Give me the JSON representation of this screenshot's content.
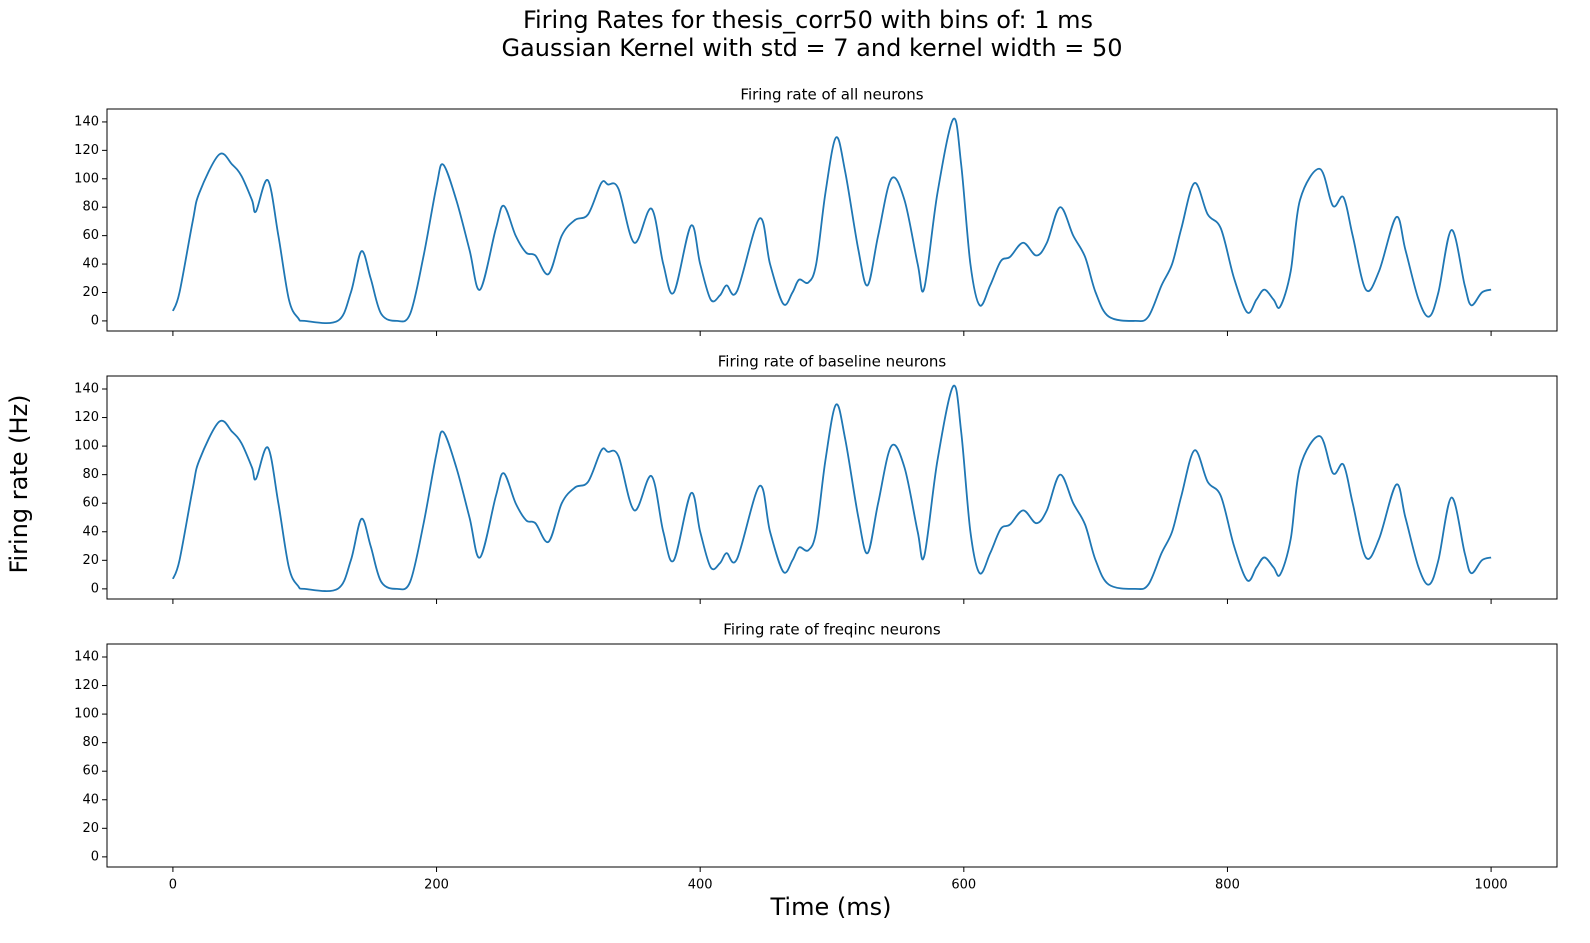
{
  "title_lines": [
    "Firing Rates for thesis_corr50 with bins of: 1 ms",
    "Gaussian Kernel with std = 7 and kernel width = 50"
  ],
  "xlabel": "Time (ms)",
  "ylabel": "Firing rate (Hz)",
  "chart_data": [
    {
      "type": "line",
      "title": "Firing rate of all neurons",
      "color": "#1f77b4",
      "x": [
        0,
        5,
        15,
        20,
        35,
        45,
        52,
        60,
        63,
        72,
        80,
        88,
        95,
        100,
        125,
        135,
        143,
        150,
        158,
        170,
        180,
        190,
        200,
        205,
        215,
        225,
        233,
        245,
        251,
        260,
        268,
        275,
        285,
        295,
        305,
        315,
        325,
        330,
        338,
        350,
        363,
        372,
        380,
        393,
        400,
        408,
        415,
        420,
        428,
        445,
        453,
        463,
        470,
        475,
        482,
        488,
        495,
        503,
        510,
        520,
        527,
        535,
        545,
        555,
        565,
        570,
        580,
        592,
        598,
        605,
        612,
        620,
        628,
        635,
        645,
        655,
        663,
        673,
        683,
        692,
        700,
        710,
        730,
        740,
        750,
        758,
        765,
        775,
        785,
        795,
        805,
        815,
        822,
        828,
        835,
        840,
        848,
        855,
        870,
        880,
        888,
        895,
        905,
        915,
        928,
        935,
        945,
        953,
        960,
        970,
        980,
        985,
        993,
        1000
      ],
      "values": [
        7,
        20,
        70,
        90,
        117,
        110,
        102,
        85,
        77,
        99,
        60,
        15,
        2,
        0,
        0,
        20,
        49,
        30,
        5,
        0,
        5,
        45,
        95,
        110,
        85,
        50,
        22,
        65,
        81,
        60,
        48,
        46,
        33,
        60,
        71,
        75,
        97,
        96,
        93,
        55,
        79,
        40,
        20,
        67,
        40,
        15,
        18,
        25,
        21,
        72,
        40,
        12,
        20,
        29,
        27,
        40,
        90,
        129,
        105,
        50,
        25,
        60,
        100,
        85,
        40,
        23,
        90,
        142,
        110,
        40,
        11,
        25,
        42,
        45,
        55,
        46,
        55,
        80,
        60,
        45,
        20,
        3,
        0,
        3,
        25,
        40,
        65,
        97,
        75,
        65,
        30,
        6,
        15,
        22,
        15,
        10,
        35,
        85,
        107,
        81,
        87,
        60,
        22,
        35,
        73,
        50,
        15,
        3,
        20,
        64,
        25,
        11,
        20,
        22
      ],
      "xlim": [
        -50,
        1050
      ],
      "xticks": [
        0,
        200,
        400,
        600,
        800,
        1000
      ],
      "show_xtick_labels": false,
      "ylim": [
        -7.1,
        149.1
      ],
      "yticks": [
        0,
        20,
        40,
        60,
        80,
        100,
        120,
        140
      ]
    },
    {
      "type": "line",
      "title": "Firing rate of baseline neurons",
      "color": "#1f77b4",
      "x": [
        0,
        5,
        15,
        20,
        35,
        45,
        52,
        60,
        63,
        72,
        80,
        88,
        95,
        100,
        125,
        135,
        143,
        150,
        158,
        170,
        180,
        190,
        200,
        205,
        215,
        225,
        233,
        245,
        251,
        260,
        268,
        275,
        285,
        295,
        305,
        315,
        325,
        330,
        338,
        350,
        363,
        372,
        380,
        393,
        400,
        408,
        415,
        420,
        428,
        445,
        453,
        463,
        470,
        475,
        482,
        488,
        495,
        503,
        510,
        520,
        527,
        535,
        545,
        555,
        565,
        570,
        580,
        592,
        598,
        605,
        612,
        620,
        628,
        635,
        645,
        655,
        663,
        673,
        683,
        692,
        700,
        710,
        730,
        740,
        750,
        758,
        765,
        775,
        785,
        795,
        805,
        815,
        822,
        828,
        835,
        840,
        848,
        855,
        870,
        880,
        888,
        895,
        905,
        915,
        928,
        935,
        945,
        953,
        960,
        970,
        980,
        985,
        993,
        1000
      ],
      "values": [
        7,
        20,
        70,
        90,
        117,
        110,
        102,
        85,
        77,
        99,
        60,
        15,
        2,
        0,
        0,
        20,
        49,
        30,
        5,
        0,
        5,
        45,
        95,
        110,
        85,
        50,
        22,
        65,
        81,
        60,
        48,
        46,
        33,
        60,
        71,
        75,
        97,
        96,
        93,
        55,
        79,
        40,
        20,
        67,
        40,
        15,
        18,
        25,
        21,
        72,
        40,
        12,
        20,
        29,
        27,
        40,
        90,
        129,
        105,
        50,
        25,
        60,
        100,
        85,
        40,
        23,
        90,
        142,
        110,
        40,
        11,
        25,
        42,
        45,
        55,
        46,
        55,
        80,
        60,
        45,
        20,
        3,
        0,
        3,
        25,
        40,
        65,
        97,
        75,
        65,
        30,
        6,
        15,
        22,
        15,
        10,
        35,
        85,
        107,
        81,
        87,
        60,
        22,
        35,
        73,
        50,
        15,
        3,
        20,
        64,
        25,
        11,
        20,
        22
      ],
      "xlim": [
        -50,
        1050
      ],
      "xticks": [
        0,
        200,
        400,
        600,
        800,
        1000
      ],
      "show_xtick_labels": false,
      "ylim": [
        -7.1,
        149.1
      ],
      "yticks": [
        0,
        20,
        40,
        60,
        80,
        100,
        120,
        140
      ]
    },
    {
      "type": "line",
      "title": "Firing rate of freqinc neurons",
      "color": "#1f77b4",
      "x": [],
      "values": [],
      "xlim": [
        -50,
        1050
      ],
      "xticks": [
        0,
        200,
        400,
        600,
        800,
        1000
      ],
      "show_xtick_labels": true,
      "ylim": [
        -7.1,
        149.1
      ],
      "yticks": [
        0,
        20,
        40,
        60,
        80,
        100,
        120,
        140
      ]
    }
  ]
}
